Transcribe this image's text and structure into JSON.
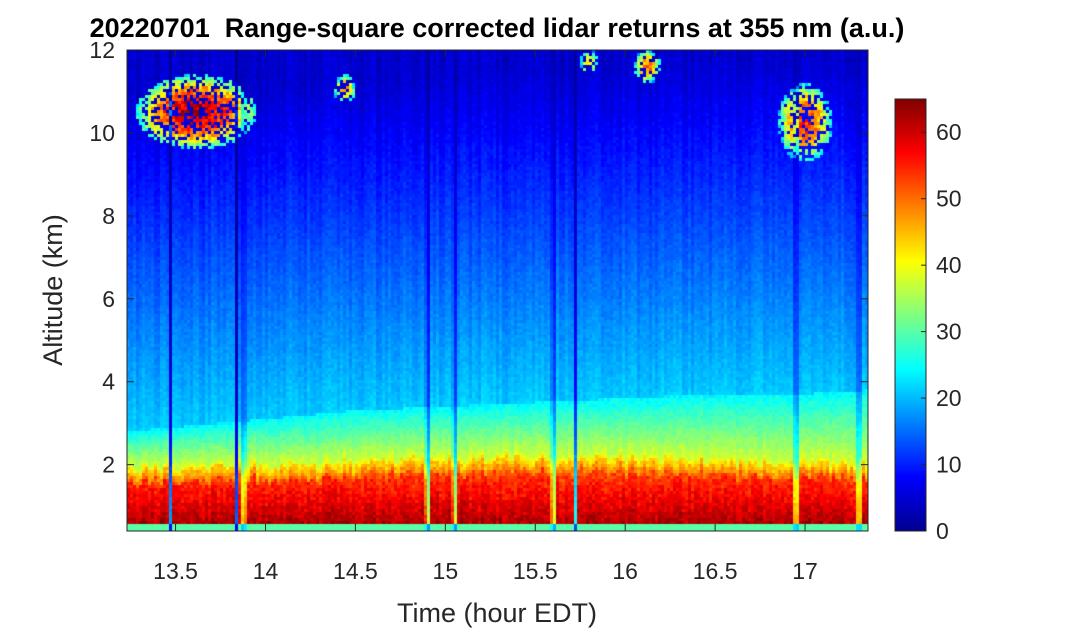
{
  "chart_data": {
    "type": "heatmap",
    "title": "20220701  Range-square corrected lidar returns at 355 nm (a.u.)",
    "xlabel": "Time (hour EDT)",
    "ylabel": "Altitude (km)",
    "xlim": [
      13.23,
      17.35
    ],
    "ylim": [
      0.4,
      12
    ],
    "x_ticks": [
      13.5,
      14,
      14.5,
      15,
      15.5,
      16,
      16.5,
      17
    ],
    "x_tick_labels": [
      "13.5",
      "14",
      "14.5",
      "15",
      "15.5",
      "16",
      "16.5",
      "17"
    ],
    "y_ticks": [
      2,
      4,
      6,
      8,
      10,
      12
    ],
    "y_tick_labels": [
      "2",
      "4",
      "6",
      "8",
      "10",
      "12"
    ],
    "colorbar": {
      "colormap": "jet",
      "range": [
        0,
        65
      ],
      "ticks": [
        0,
        10,
        20,
        30,
        40,
        50,
        60
      ],
      "tick_labels": [
        "0",
        "10",
        "20",
        "30",
        "40",
        "50",
        "60"
      ]
    },
    "boundary_layer_top": {
      "x": [
        13.23,
        13.5,
        13.8,
        14.0,
        14.3,
        14.5,
        14.8,
        15.0,
        15.3,
        15.6,
        16.0,
        16.5,
        17.0,
        17.35
      ],
      "y": [
        1.9,
        1.95,
        2.0,
        2.0,
        2.0,
        2.05,
        2.1,
        2.1,
        2.15,
        2.2,
        2.15,
        2.1,
        2.05,
        2.05
      ]
    },
    "aerosol_layer": {
      "x": [
        13.23,
        13.5,
        14.0,
        14.5,
        15.0,
        15.5,
        16.0,
        16.5,
        17.0,
        17.35
      ],
      "top_km": [
        2.8,
        2.9,
        3.1,
        3.3,
        3.4,
        3.5,
        3.6,
        3.7,
        3.7,
        3.8
      ],
      "value": 24
    },
    "cirrus_cloud_patches": [
      {
        "x": [
          13.28,
          13.95
        ],
        "alt_km": [
          9.6,
          11.4
        ],
        "peak_value": 62
      },
      {
        "x": [
          14.38,
          14.5
        ],
        "alt_km": [
          10.7,
          11.4
        ],
        "peak_value": 48
      },
      {
        "x": [
          15.75,
          15.85
        ],
        "alt_km": [
          11.4,
          12.0
        ],
        "peak_value": 45
      },
      {
        "x": [
          16.05,
          16.2
        ],
        "alt_km": [
          11.2,
          12.0
        ],
        "peak_value": 50
      },
      {
        "x": [
          16.85,
          17.15
        ],
        "alt_km": [
          9.3,
          11.2
        ],
        "peak_value": 55
      }
    ],
    "signal_dropout_times": [
      13.47,
      13.84,
      13.88,
      14.9,
      15.05,
      15.6,
      15.72,
      16.95,
      17.3
    ]
  }
}
